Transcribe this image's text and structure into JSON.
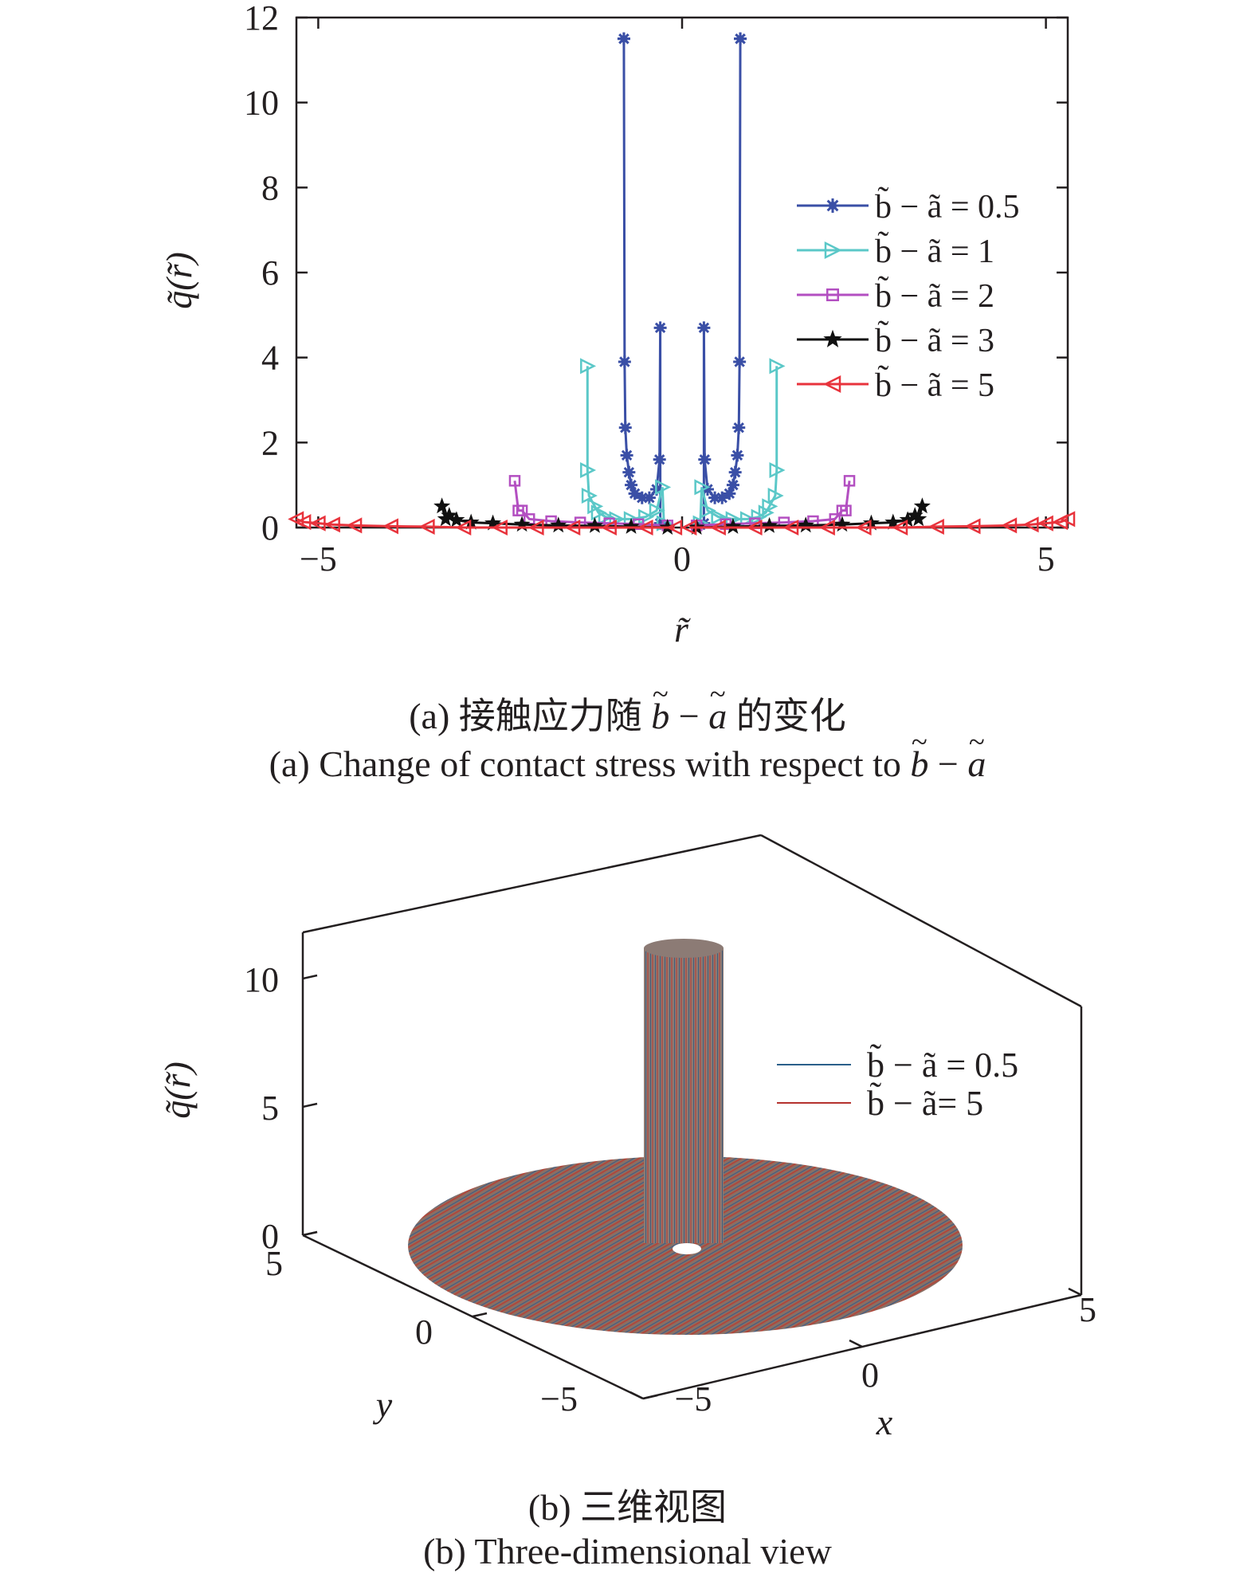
{
  "chart_data": [
    {
      "type": "line",
      "panel": "(a)",
      "xlabel": "r̃",
      "ylabel": "q̃(r̃)",
      "xlim": [
        -5.3,
        5.3
      ],
      "ylim": [
        0,
        12
      ],
      "xticks": [
        "−5",
        "0",
        "5"
      ],
      "yticks": [
        "0",
        "2",
        "4",
        "6",
        "8",
        "10",
        "12"
      ],
      "grid": false,
      "legend_position": "right",
      "series": [
        {
          "name": "b̃ − ã = 0.5",
          "color": "#3a4fa6",
          "marker": "asterisk",
          "x": [
            -0.3,
            -0.3,
            -0.31,
            -0.35,
            -0.45,
            -0.55,
            -0.65,
            -0.7,
            -0.73,
            -0.76,
            -0.78,
            -0.79,
            -0.8,
            -0.8
          ],
          "y": [
            0.1,
            4.7,
            1.6,
            0.9,
            0.7,
            0.7,
            0.8,
            1.0,
            1.3,
            1.7,
            2.35,
            3.9,
            11.5,
            11.5
          ],
          "mirror": true
        },
        {
          "name": "b̃ − ã = 1",
          "color": "#5bc8c8",
          "marker": "triangle-right",
          "x": [
            -0.25,
            -0.27,
            -0.35,
            -0.5,
            -0.7,
            -0.9,
            -1.05,
            -1.15,
            -1.2,
            -1.28,
            -1.3,
            -1.3
          ],
          "y": [
            0.1,
            0.95,
            0.4,
            0.25,
            0.2,
            0.2,
            0.25,
            0.35,
            0.5,
            0.75,
            1.35,
            3.8
          ],
          "mirror": true
        },
        {
          "name": "b̃ − ã = 2",
          "color": "#b34fc1",
          "marker": "square",
          "x": [
            -0.2,
            -0.6,
            -1.0,
            -1.4,
            -1.8,
            -2.1,
            -2.2,
            -2.25,
            -2.3
          ],
          "y": [
            0.05,
            0.08,
            0.1,
            0.12,
            0.15,
            0.2,
            0.4,
            0.4,
            1.1
          ],
          "mirror": true
        },
        {
          "name": "b̃ − ã = 3",
          "color": "#111111",
          "marker": "star",
          "x": [
            -0.2,
            -0.7,
            -1.2,
            -1.7,
            -2.2,
            -2.6,
            -2.9,
            -3.1,
            -3.2,
            -3.25,
            -3.3
          ],
          "y": [
            0.0,
            0.02,
            0.04,
            0.05,
            0.07,
            0.1,
            0.12,
            0.18,
            0.28,
            0.2,
            0.5
          ],
          "mirror": true
        },
        {
          "name": "b̃ − ã = 5",
          "color": "#e8333c",
          "marker": "triangle-left",
          "x": [
            -0.1,
            -0.5,
            -1.0,
            -1.5,
            -2.0,
            -2.5,
            -3.0,
            -3.5,
            -4.0,
            -4.5,
            -4.8,
            -5.0,
            -5.2,
            -5.3
          ],
          "y": [
            0.0,
            0.0,
            0.0,
            0.0,
            0.0,
            0.0,
            0.0,
            0.02,
            0.03,
            0.05,
            0.07,
            0.1,
            0.13,
            0.2
          ],
          "mirror": true
        }
      ]
    },
    {
      "type": "surface3d",
      "panel": "(b)",
      "xlabel": "x",
      "ylabel": "y",
      "zlabel": "q̃(r̃)",
      "xticks": [
        "−5",
        "0",
        "5"
      ],
      "yticks": [
        "−5",
        "0",
        "5"
      ],
      "zticks": [
        "0",
        "5",
        "10"
      ],
      "zlim": [
        0,
        12
      ],
      "legend_position": "right",
      "series": [
        {
          "name": "b̃ − ã = 0.5",
          "color": "#2b5f8a"
        },
        {
          "name": "b̃ − ã= 5",
          "color": "#b5322e"
        }
      ]
    }
  ],
  "captions": {
    "a_cn_prefix": "(a) 接触应力随",
    "a_cn_suffix": "的变化",
    "a_en_prefix": "(a) Change of contact stress with respect to",
    "b_cn": "(b) 三维视图",
    "b_en": "(b) Three-dimensional view"
  }
}
